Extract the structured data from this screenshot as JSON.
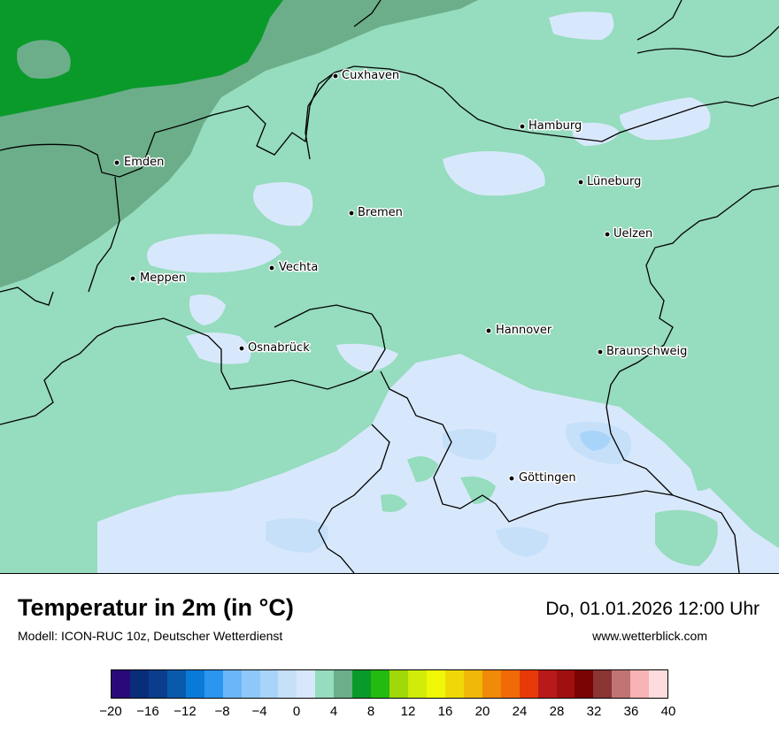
{
  "title": "Temperatur in 2m (in °C)",
  "subtitle": "Modell: ICON-RUC 10z, Deutscher Wetterdienst",
  "datetime": "Do, 01.01.2026 12:00 Uhr",
  "website": "www.wetterblick.com",
  "cities": [
    {
      "name": "Cuxhaven"
    },
    {
      "name": "Hamburg"
    },
    {
      "name": "Emden"
    },
    {
      "name": "Lüneburg"
    },
    {
      "name": "Bremen"
    },
    {
      "name": "Uelzen"
    },
    {
      "name": "Vechta"
    },
    {
      "name": "Meppen"
    },
    {
      "name": "Hannover"
    },
    {
      "name": "Osnabrück"
    },
    {
      "name": "Braunschweig"
    },
    {
      "name": "Göttingen"
    }
  ],
  "legend": {
    "colors": [
      "#2a0a78",
      "#0a2d7a",
      "#0a3e8c",
      "#0a5aac",
      "#0a7ad8",
      "#2a96f0",
      "#6bb6f8",
      "#8ec8fa",
      "#a9d4fa",
      "#c6e0fa",
      "#d8e8fc",
      "#96dcbe",
      "#6cae8a",
      "#0a9a2a",
      "#24ba10",
      "#a0d80a",
      "#d0ec08",
      "#f0f808",
      "#f0d808",
      "#f0b808",
      "#f08a08",
      "#f06a08",
      "#e83a08",
      "#b81a1a",
      "#a01010",
      "#7a0404",
      "#8a3434",
      "#c07474",
      "#f8b4b4",
      "#fcdcdc"
    ],
    "ticks": [
      "−20",
      "−16",
      "−12",
      "−8",
      "−4",
      "0",
      "4",
      "8",
      "12",
      "16",
      "20",
      "24",
      "28",
      "32",
      "36",
      "40"
    ]
  }
}
